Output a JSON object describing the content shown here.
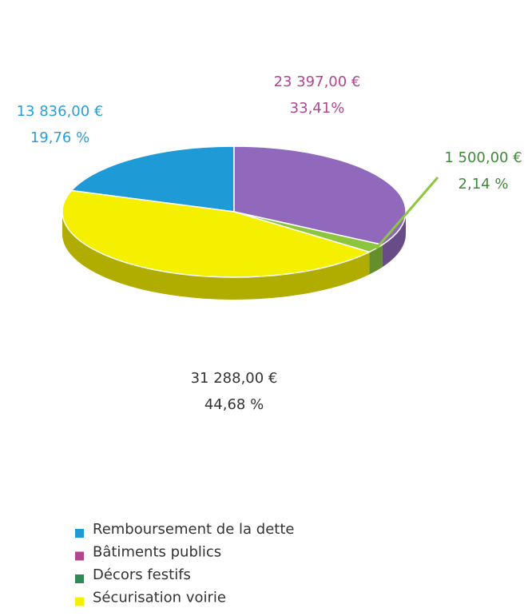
{
  "chart_data": {
    "type": "pie",
    "categories": [
      "Remboursement de la dette",
      "Bâtiments publics",
      "Décors festifs",
      "Sécurisation voirie"
    ],
    "values": [
      19.76,
      33.41,
      2.14,
      44.68
    ],
    "value_labels": [
      "19,76 %",
      "33,41%",
      "2,14 %",
      "44,68 %"
    ],
    "amount_labels": [
      "13 836,00 €",
      "23 397,00 €",
      "1 500,00 €",
      "31 288,00 €"
    ],
    "colors": [
      "#1e9ad6",
      "#9069bd",
      "#8cc63f",
      "#f5f000"
    ],
    "legend_colors": [
      "#1e9ad6",
      "#b0478f",
      "#2e8b57",
      "#f5f000"
    ],
    "label_colors": [
      "#2a9fd6",
      "#b0478f",
      "#3f8a3a",
      "#333333"
    ],
    "legend": "bottom"
  }
}
